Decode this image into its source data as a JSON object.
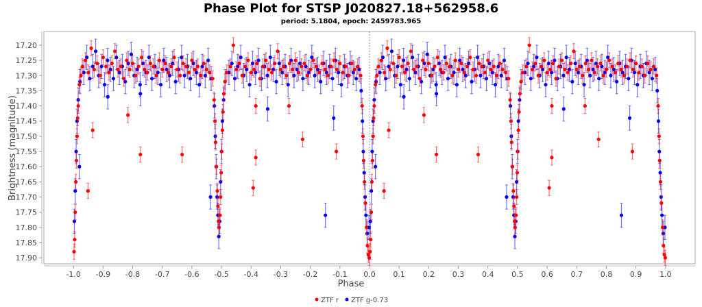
{
  "chart_data": {
    "type": "scatter",
    "title": "Phase Plot for STSP J020827.18+562958.6",
    "subtitle": "period: 5.1804, epoch: 2459783.965",
    "xlabel": "Phase",
    "ylabel": "Brightness (magnitude)",
    "xlim": [
      -1.1,
      1.1
    ],
    "ylim": [
      17.155,
      17.92
    ],
    "y_inverted": true,
    "x_ticks": [
      "-1.0",
      "-0.9",
      "-0.8",
      "-0.7",
      "-0.6",
      "-0.5",
      "-0.4",
      "-0.3",
      "-0.2",
      "-0.1",
      "0.0",
      "0.1",
      "0.2",
      "0.3",
      "0.4",
      "0.5",
      "0.6",
      "0.7",
      "0.8",
      "0.9",
      "1.0"
    ],
    "y_ticks": [
      "17.20",
      "17.25",
      "17.30",
      "17.35",
      "17.40",
      "17.45",
      "17.50",
      "17.55",
      "17.60",
      "17.65",
      "17.70",
      "17.75",
      "17.80",
      "17.85",
      "17.90"
    ],
    "phase_repeated_at_minus_one": true,
    "legend_position": "bottom-center",
    "series": [
      {
        "name": "ZTF r",
        "color": "#ff0000",
        "yerr": 0.025,
        "points": [
          [
            0.03,
            17.27
          ],
          [
            0.04,
            17.25
          ],
          [
            0.05,
            17.29
          ],
          [
            0.06,
            17.21
          ],
          [
            0.07,
            17.28
          ],
          [
            0.08,
            17.26
          ],
          [
            0.09,
            17.3
          ],
          [
            0.1,
            17.24
          ],
          [
            0.11,
            17.27
          ],
          [
            0.12,
            17.29
          ],
          [
            0.13,
            17.26
          ],
          [
            0.14,
            17.22
          ],
          [
            0.15,
            17.28
          ],
          [
            0.16,
            17.27
          ],
          [
            0.17,
            17.31
          ],
          [
            0.18,
            17.25
          ],
          [
            0.19,
            17.28
          ],
          [
            0.2,
            17.26
          ],
          [
            0.21,
            17.3
          ],
          [
            0.22,
            17.27
          ],
          [
            0.23,
            17.24
          ],
          [
            0.24,
            17.28
          ],
          [
            0.25,
            17.29
          ],
          [
            0.26,
            17.26
          ],
          [
            0.27,
            17.27
          ],
          [
            0.28,
            17.3
          ],
          [
            0.29,
            17.25
          ],
          [
            0.3,
            17.28
          ],
          [
            0.31,
            17.26
          ],
          [
            0.32,
            17.29
          ],
          [
            0.33,
            17.27
          ],
          [
            0.34,
            17.24
          ],
          [
            0.35,
            17.28
          ],
          [
            0.36,
            17.3
          ],
          [
            0.37,
            17.26
          ],
          [
            0.38,
            17.27
          ],
          [
            0.39,
            17.29
          ],
          [
            0.4,
            17.25
          ],
          [
            0.41,
            17.28
          ],
          [
            0.42,
            17.27
          ],
          [
            0.43,
            17.3
          ],
          [
            0.44,
            17.26
          ],
          [
            0.45,
            17.28
          ],
          [
            0.46,
            17.29
          ],
          [
            0.53,
            17.27
          ],
          [
            0.54,
            17.2
          ],
          [
            0.55,
            17.28
          ],
          [
            0.56,
            17.26
          ],
          [
            0.57,
            17.3
          ],
          [
            0.58,
            17.27
          ],
          [
            0.59,
            17.25
          ],
          [
            0.6,
            17.29
          ],
          [
            0.61,
            17.28
          ],
          [
            0.62,
            17.26
          ],
          [
            0.63,
            17.31
          ],
          [
            0.64,
            17.27
          ],
          [
            0.65,
            17.25
          ],
          [
            0.66,
            17.28
          ],
          [
            0.67,
            17.29
          ],
          [
            0.68,
            17.26
          ],
          [
            0.69,
            17.22
          ],
          [
            0.7,
            17.28
          ],
          [
            0.71,
            17.27
          ],
          [
            0.72,
            17.3
          ],
          [
            0.73,
            17.26
          ],
          [
            0.74,
            17.28
          ],
          [
            0.75,
            17.25
          ],
          [
            0.76,
            17.29
          ],
          [
            0.77,
            17.27
          ],
          [
            0.78,
            17.26
          ],
          [
            0.79,
            17.3
          ],
          [
            0.8,
            17.28
          ],
          [
            0.81,
            17.25
          ],
          [
            0.82,
            17.27
          ],
          [
            0.83,
            17.29
          ],
          [
            0.84,
            17.26
          ],
          [
            0.85,
            17.28
          ],
          [
            0.86,
            17.3
          ],
          [
            0.87,
            17.27
          ],
          [
            0.88,
            17.25
          ],
          [
            0.89,
            17.28
          ],
          [
            0.9,
            17.26
          ],
          [
            0.91,
            17.29
          ],
          [
            0.92,
            17.27
          ],
          [
            0.93,
            17.3
          ],
          [
            0.94,
            17.26
          ],
          [
            0.95,
            17.28
          ],
          [
            0.96,
            17.27
          ],
          [
            0.97,
            17.3
          ],
          [
            0.975,
            17.4
          ],
          [
            0.978,
            17.5
          ],
          [
            0.98,
            17.58
          ],
          [
            0.983,
            17.65
          ],
          [
            0.986,
            17.72
          ],
          [
            0.99,
            17.8
          ],
          [
            0.993,
            17.86
          ],
          [
            0.996,
            17.89
          ],
          [
            0.999,
            17.9
          ],
          [
            0.002,
            17.88
          ],
          [
            0.004,
            17.84
          ],
          [
            0.006,
            17.75
          ],
          [
            0.008,
            17.65
          ],
          [
            0.01,
            17.58
          ],
          [
            0.012,
            17.5
          ],
          [
            0.014,
            17.44
          ],
          [
            0.016,
            17.4
          ],
          [
            0.02,
            17.33
          ],
          [
            0.025,
            17.3
          ],
          [
            0.47,
            17.31
          ],
          [
            0.475,
            17.38
          ],
          [
            0.478,
            17.45
          ],
          [
            0.48,
            17.52
          ],
          [
            0.483,
            17.6
          ],
          [
            0.486,
            17.68
          ],
          [
            0.488,
            17.73
          ],
          [
            0.49,
            17.78
          ],
          [
            0.492,
            17.8
          ],
          [
            0.495,
            17.76
          ],
          [
            0.497,
            17.7
          ],
          [
            0.499,
            17.62
          ],
          [
            0.501,
            17.55
          ],
          [
            0.503,
            17.48
          ],
          [
            0.505,
            17.42
          ],
          [
            0.508,
            17.36
          ],
          [
            0.512,
            17.32
          ],
          [
            0.518,
            17.29
          ],
          [
            0.065,
            17.48
          ],
          [
            0.184,
            17.43
          ],
          [
            0.226,
            17.56
          ],
          [
            0.367,
            17.56
          ],
          [
            0.049,
            17.68
          ],
          [
            0.616,
            17.4
          ],
          [
            0.616,
            17.57
          ],
          [
            0.607,
            17.67
          ],
          [
            0.728,
            17.4
          ],
          [
            0.774,
            17.51
          ],
          [
            0.888,
            17.55
          ]
        ]
      },
      {
        "name": "ZTF g-0.73",
        "color": "#0000ff",
        "yerr": 0.04,
        "points": [
          [
            0.035,
            17.29
          ],
          [
            0.045,
            17.24
          ],
          [
            0.055,
            17.31
          ],
          [
            0.065,
            17.27
          ],
          [
            0.075,
            17.22
          ],
          [
            0.085,
            17.3
          ],
          [
            0.095,
            17.27
          ],
          [
            0.105,
            17.33
          ],
          [
            0.115,
            17.25
          ],
          [
            0.125,
            17.28
          ],
          [
            0.135,
            17.31
          ],
          [
            0.145,
            17.24
          ],
          [
            0.155,
            17.29
          ],
          [
            0.165,
            17.27
          ],
          [
            0.175,
            17.32
          ],
          [
            0.185,
            17.26
          ],
          [
            0.195,
            17.23
          ],
          [
            0.205,
            17.3
          ],
          [
            0.215,
            17.28
          ],
          [
            0.225,
            17.33
          ],
          [
            0.235,
            17.26
          ],
          [
            0.245,
            17.29
          ],
          [
            0.255,
            17.24
          ],
          [
            0.265,
            17.31
          ],
          [
            0.275,
            17.27
          ],
          [
            0.285,
            17.29
          ],
          [
            0.295,
            17.33
          ],
          [
            0.305,
            17.25
          ],
          [
            0.315,
            17.28
          ],
          [
            0.325,
            17.3
          ],
          [
            0.335,
            17.26
          ],
          [
            0.345,
            17.32
          ],
          [
            0.355,
            17.28
          ],
          [
            0.365,
            17.24
          ],
          [
            0.375,
            17.3
          ],
          [
            0.385,
            17.27
          ],
          [
            0.395,
            17.31
          ],
          [
            0.405,
            17.26
          ],
          [
            0.415,
            17.29
          ],
          [
            0.425,
            17.33
          ],
          [
            0.435,
            17.27
          ],
          [
            0.445,
            17.3
          ],
          [
            0.455,
            17.25
          ],
          [
            0.465,
            17.31
          ],
          [
            0.525,
            17.29
          ],
          [
            0.535,
            17.26
          ],
          [
            0.545,
            17.31
          ],
          [
            0.555,
            17.27
          ],
          [
            0.565,
            17.24
          ],
          [
            0.575,
            17.3
          ],
          [
            0.585,
            17.28
          ],
          [
            0.595,
            17.33
          ],
          [
            0.605,
            17.26
          ],
          [
            0.615,
            17.29
          ],
          [
            0.625,
            17.25
          ],
          [
            0.635,
            17.31
          ],
          [
            0.645,
            17.27
          ],
          [
            0.655,
            17.3
          ],
          [
            0.665,
            17.24
          ],
          [
            0.675,
            17.28
          ],
          [
            0.685,
            17.32
          ],
          [
            0.695,
            17.26
          ],
          [
            0.705,
            17.29
          ],
          [
            0.715,
            17.27
          ],
          [
            0.725,
            17.33
          ],
          [
            0.735,
            17.25
          ],
          [
            0.745,
            17.3
          ],
          [
            0.755,
            17.28
          ],
          [
            0.765,
            17.26
          ],
          [
            0.775,
            17.31
          ],
          [
            0.785,
            17.27
          ],
          [
            0.795,
            17.29
          ],
          [
            0.805,
            17.24
          ],
          [
            0.815,
            17.3
          ],
          [
            0.825,
            17.28
          ],
          [
            0.835,
            17.32
          ],
          [
            0.845,
            17.26
          ],
          [
            0.855,
            17.29
          ],
          [
            0.865,
            17.27
          ],
          [
            0.875,
            17.31
          ],
          [
            0.885,
            17.25
          ],
          [
            0.895,
            17.29
          ],
          [
            0.905,
            17.33
          ],
          [
            0.915,
            17.27
          ],
          [
            0.925,
            17.3
          ],
          [
            0.935,
            17.26
          ],
          [
            0.945,
            17.29
          ],
          [
            0.955,
            17.31
          ],
          [
            0.965,
            17.28
          ],
          [
            0.972,
            17.35
          ],
          [
            0.976,
            17.45
          ],
          [
            0.979,
            17.55
          ],
          [
            0.982,
            17.62
          ],
          [
            0.985,
            17.7
          ],
          [
            0.988,
            17.76
          ],
          [
            0.992,
            17.82
          ],
          [
            0.998,
            17.8
          ],
          [
            0.003,
            17.78
          ],
          [
            0.006,
            17.68
          ],
          [
            0.009,
            17.55
          ],
          [
            0.012,
            17.45
          ],
          [
            0.016,
            17.38
          ],
          [
            0.022,
            17.32
          ],
          [
            0.02,
            17.6
          ],
          [
            0.476,
            17.4
          ],
          [
            0.479,
            17.5
          ],
          [
            0.482,
            17.6
          ],
          [
            0.485,
            17.7
          ],
          [
            0.488,
            17.76
          ],
          [
            0.491,
            17.83
          ],
          [
            0.494,
            17.78
          ],
          [
            0.497,
            17.65
          ],
          [
            0.5,
            17.55
          ],
          [
            0.503,
            17.45
          ],
          [
            0.507,
            17.38
          ],
          [
            0.512,
            17.32
          ],
          [
            0.116,
            17.37
          ],
          [
            0.226,
            17.36
          ],
          [
            0.656,
            17.41
          ],
          [
            0.879,
            17.44
          ],
          [
            0.851,
            17.76
          ],
          [
            0.463,
            17.7
          ]
        ]
      }
    ]
  }
}
